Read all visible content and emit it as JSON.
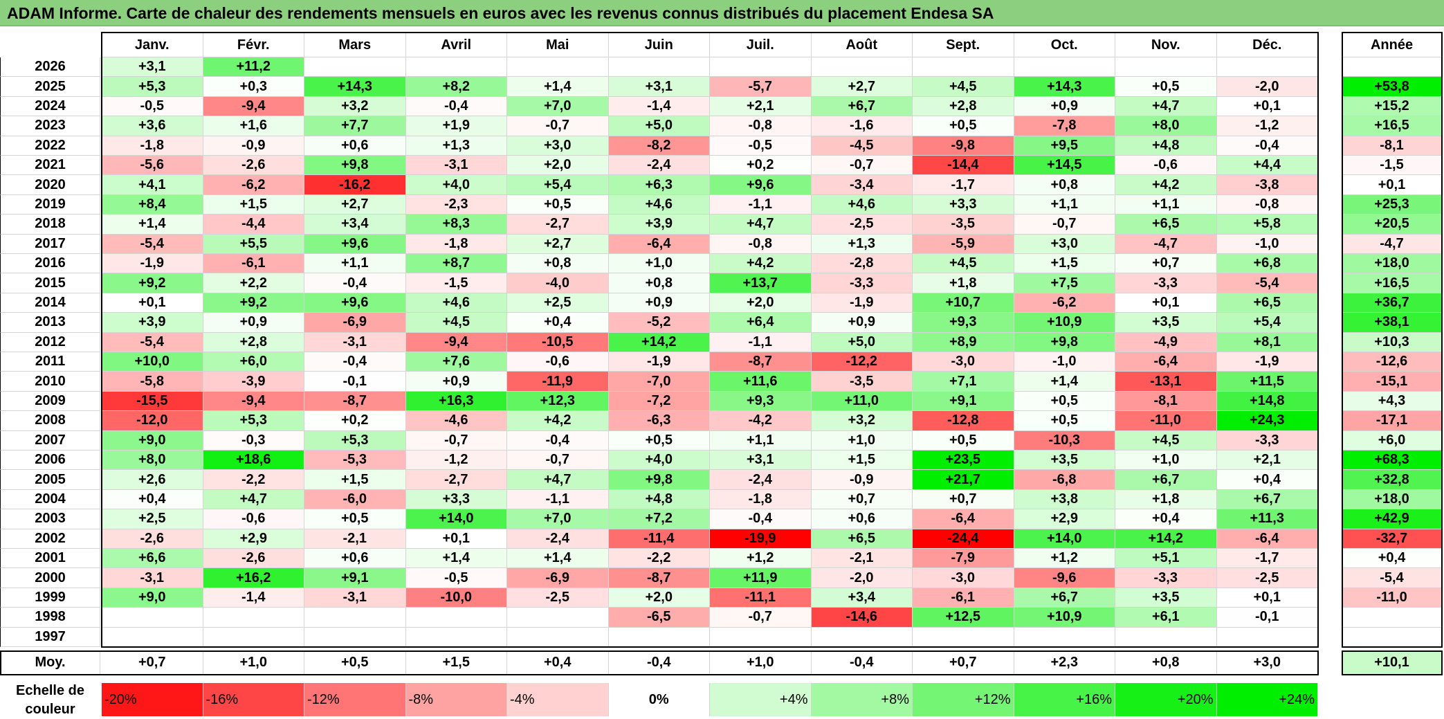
{
  "title": "ADAM Informe. Carte de chaleur des rendements mensuels en euros avec les revenus connus distribués du placement Endesa SA",
  "chart_data": {
    "type": "heatmap",
    "months": [
      "Janv.",
      "Févr.",
      "Mars",
      "Avril",
      "Mai",
      "Juin",
      "Juil.",
      "Août",
      "Sept.",
      "Oct.",
      "Nov.",
      "Déc."
    ],
    "annual_label": "Année",
    "rows": [
      {
        "year": "2026",
        "values": [
          "+3,1",
          "+11,2",
          "",
          "",
          "",
          "",
          "",
          "",
          "",
          "",
          "",
          ""
        ],
        "annual": ""
      },
      {
        "year": "2025",
        "values": [
          "+5,3",
          "+0,3",
          "+14,3",
          "+8,2",
          "+1,4",
          "+3,1",
          "-5,7",
          "+2,7",
          "+4,5",
          "+14,3",
          "+0,5",
          "-2,0"
        ],
        "annual": "+53,8"
      },
      {
        "year": "2024",
        "values": [
          "-0,5",
          "-9,4",
          "+3,2",
          "-0,4",
          "+7,0",
          "-1,4",
          "+2,1",
          "+6,7",
          "+2,8",
          "+0,9",
          "+4,7",
          "+0,1"
        ],
        "annual": "+15,2"
      },
      {
        "year": "2023",
        "values": [
          "+3,6",
          "+1,6",
          "+7,7",
          "+1,9",
          "-0,7",
          "+5,0",
          "-0,8",
          "-1,6",
          "+0,5",
          "-7,8",
          "+8,0",
          "-1,2"
        ],
        "annual": "+16,5"
      },
      {
        "year": "2022",
        "values": [
          "-1,8",
          "-0,9",
          "+0,6",
          "+1,3",
          "+3,0",
          "-8,2",
          "-0,5",
          "-4,5",
          "-9,8",
          "+9,5",
          "+4,8",
          "-0,4"
        ],
        "annual": "-8,1"
      },
      {
        "year": "2021",
        "values": [
          "-5,6",
          "-2,6",
          "+9,8",
          "-3,1",
          "+2,0",
          "-2,4",
          "+0,2",
          "-0,7",
          "-14,4",
          "+14,5",
          "-0,6",
          "+4,4"
        ],
        "annual": "-1,5"
      },
      {
        "year": "2020",
        "values": [
          "+4,1",
          "-6,2",
          "-16,2",
          "+4,0",
          "+5,4",
          "+6,3",
          "+9,6",
          "-3,4",
          "-1,7",
          "+0,8",
          "+4,2",
          "-3,8"
        ],
        "annual": "+0,1"
      },
      {
        "year": "2019",
        "values": [
          "+8,4",
          "+1,5",
          "+2,7",
          "-2,3",
          "+0,5",
          "+4,6",
          "-1,1",
          "+4,6",
          "+3,3",
          "+1,1",
          "+1,1",
          "-0,8"
        ],
        "annual": "+25,3"
      },
      {
        "year": "2018",
        "values": [
          "+1,4",
          "-4,4",
          "+3,4",
          "+8,3",
          "-2,7",
          "+3,9",
          "+4,7",
          "-2,5",
          "-3,5",
          "-0,7",
          "+6,5",
          "+5,8"
        ],
        "annual": "+20,5"
      },
      {
        "year": "2017",
        "values": [
          "-5,4",
          "+5,5",
          "+9,6",
          "-1,8",
          "+2,7",
          "-6,4",
          "-0,8",
          "+1,3",
          "-5,9",
          "+3,0",
          "-4,7",
          "-1,0"
        ],
        "annual": "-4,7"
      },
      {
        "year": "2016",
        "values": [
          "-1,9",
          "-6,1",
          "+1,1",
          "+8,7",
          "+0,8",
          "+1,0",
          "+4,2",
          "-2,8",
          "+4,5",
          "+1,5",
          "+0,7",
          "+6,8"
        ],
        "annual": "+18,0"
      },
      {
        "year": "2015",
        "values": [
          "+9,2",
          "+2,2",
          "-0,4",
          "-1,5",
          "-4,0",
          "+0,8",
          "+13,7",
          "-3,3",
          "+1,8",
          "+7,5",
          "-3,3",
          "-5,4"
        ],
        "annual": "+16,5"
      },
      {
        "year": "2014",
        "values": [
          "+0,1",
          "+9,2",
          "+9,6",
          "+4,6",
          "+2,5",
          "+0,9",
          "+2,0",
          "-1,9",
          "+10,7",
          "-6,2",
          "+0,1",
          "+6,5"
        ],
        "annual": "+36,7"
      },
      {
        "year": "2013",
        "values": [
          "+3,9",
          "+0,9",
          "-6,9",
          "+4,5",
          "+0,4",
          "-5,2",
          "+6,4",
          "+0,9",
          "+9,3",
          "+10,9",
          "+3,5",
          "+5,4"
        ],
        "annual": "+38,1"
      },
      {
        "year": "2012",
        "values": [
          "-5,4",
          "+2,8",
          "-3,1",
          "-9,4",
          "-10,5",
          "+14,2",
          "-1,1",
          "+5,0",
          "+8,9",
          "+9,8",
          "-4,9",
          "+8,1"
        ],
        "annual": "+10,3"
      },
      {
        "year": "2011",
        "values": [
          "+10,0",
          "+6,0",
          "-0,4",
          "+7,6",
          "-0,6",
          "-1,9",
          "-8,7",
          "-12,2",
          "-3,0",
          "-1,0",
          "-6,4",
          "-1,9"
        ],
        "annual": "-12,6"
      },
      {
        "year": "2010",
        "values": [
          "-5,8",
          "-3,9",
          "-0,1",
          "+0,9",
          "-11,9",
          "-7,0",
          "+11,6",
          "-3,5",
          "+7,1",
          "+1,4",
          "-13,1",
          "+11,5"
        ],
        "annual": "-15,1"
      },
      {
        "year": "2009",
        "values": [
          "-15,5",
          "-9,4",
          "-8,7",
          "+16,3",
          "+12,3",
          "-7,2",
          "+9,3",
          "+11,0",
          "+9,1",
          "+0,5",
          "-8,1",
          "+14,8"
        ],
        "annual": "+4,3"
      },
      {
        "year": "2008",
        "values": [
          "-12,0",
          "+5,3",
          "+0,2",
          "-4,6",
          "+4,2",
          "-6,3",
          "-4,2",
          "+3,2",
          "-12,8",
          "+0,5",
          "-11,0",
          "+24,3"
        ],
        "annual": "-17,1"
      },
      {
        "year": "2007",
        "values": [
          "+9,0",
          "-0,3",
          "+5,3",
          "-0,7",
          "-0,4",
          "+0,5",
          "+1,1",
          "+1,0",
          "+0,5",
          "-10,3",
          "+4,5",
          "-3,3"
        ],
        "annual": "+6,0"
      },
      {
        "year": "2006",
        "values": [
          "+8,0",
          "+18,6",
          "-5,3",
          "-1,2",
          "-0,7",
          "+4,0",
          "+3,1",
          "+1,5",
          "+23,5",
          "+3,5",
          "+1,0",
          "+2,1"
        ],
        "annual": "+68,3"
      },
      {
        "year": "2005",
        "values": [
          "+2,6",
          "-2,2",
          "+1,5",
          "-2,7",
          "+4,7",
          "+9,8",
          "-2,4",
          "-0,9",
          "+21,7",
          "-6,8",
          "+6,7",
          "+0,4"
        ],
        "annual": "+32,8"
      },
      {
        "year": "2004",
        "values": [
          "+0,4",
          "+4,7",
          "-6,0",
          "+3,3",
          "-1,1",
          "+4,8",
          "-1,8",
          "+0,7",
          "+0,7",
          "+3,8",
          "+1,8",
          "+6,7"
        ],
        "annual": "+18,0"
      },
      {
        "year": "2003",
        "values": [
          "+2,5",
          "-0,6",
          "+0,5",
          "+14,0",
          "+7,0",
          "+7,2",
          "-0,4",
          "+0,6",
          "-6,4",
          "+2,9",
          "+0,4",
          "+11,3"
        ],
        "annual": "+42,9"
      },
      {
        "year": "2002",
        "values": [
          "-2,6",
          "+2,9",
          "-2,1",
          "+0,1",
          "-2,4",
          "-11,4",
          "-19,9",
          "+6,5",
          "-24,4",
          "+14,0",
          "+14,2",
          "-6,4"
        ],
        "annual": "-32,7"
      },
      {
        "year": "2001",
        "values": [
          "+6,6",
          "-2,6",
          "+0,6",
          "+1,4",
          "+1,4",
          "-2,2",
          "+1,2",
          "-2,1",
          "-7,9",
          "+1,2",
          "+5,1",
          "-1,7"
        ],
        "annual": "+0,4"
      },
      {
        "year": "2000",
        "values": [
          "-3,1",
          "+16,2",
          "+9,1",
          "-0,5",
          "-6,9",
          "-8,7",
          "+11,9",
          "-2,0",
          "-3,0",
          "-9,6",
          "-3,3",
          "-2,5"
        ],
        "annual": "-5,4"
      },
      {
        "year": "1999",
        "values": [
          "+9,0",
          "-1,4",
          "-3,1",
          "-10,0",
          "-2,5",
          "+2,0",
          "-11,1",
          "+3,4",
          "-6,1",
          "+6,7",
          "+3,5",
          "+0,1"
        ],
        "annual": "-11,0"
      },
      {
        "year": "1998",
        "values": [
          "",
          "",
          "",
          "",
          "",
          "-6,5",
          "-0,7",
          "-14,6",
          "+12,5",
          "+10,9",
          "+6,1",
          "-0,1"
        ],
        "annual": ""
      },
      {
        "year": "1997",
        "values": [
          "",
          "",
          "",
          "",
          "",
          "",
          "",
          "",
          "",
          "",
          "",
          ""
        ],
        "annual": ""
      }
    ],
    "average": {
      "label": "Moy.",
      "values": [
        "+0,7",
        "+1,0",
        "+0,5",
        "+1,5",
        "+0,4",
        "-0,4",
        "+1,0",
        "-0,4",
        "+0,7",
        "+2,3",
        "+0,8",
        "+3,0"
      ],
      "annual": "+10,1"
    },
    "color_scale": {
      "label": "Echelle de couleur",
      "steps": [
        {
          "label": "-20%",
          "value": -20
        },
        {
          "label": "-16%",
          "value": -16
        },
        {
          "label": "-12%",
          "value": -12
        },
        {
          "label": "-8%",
          "value": -8
        },
        {
          "label": "-4%",
          "value": -4
        },
        {
          "label": "0%",
          "value": 0
        },
        {
          "label": "+4%",
          "value": 4
        },
        {
          "label": "+8%",
          "value": 8
        },
        {
          "label": "+12%",
          "value": 12
        },
        {
          "label": "+16%",
          "value": 16
        },
        {
          "label": "+20%",
          "value": 20
        },
        {
          "label": "+24%",
          "value": 24
        }
      ],
      "neg_color": "#ff0000",
      "pos_color": "#00ee00",
      "neutral_color": "#ffffff"
    }
  }
}
